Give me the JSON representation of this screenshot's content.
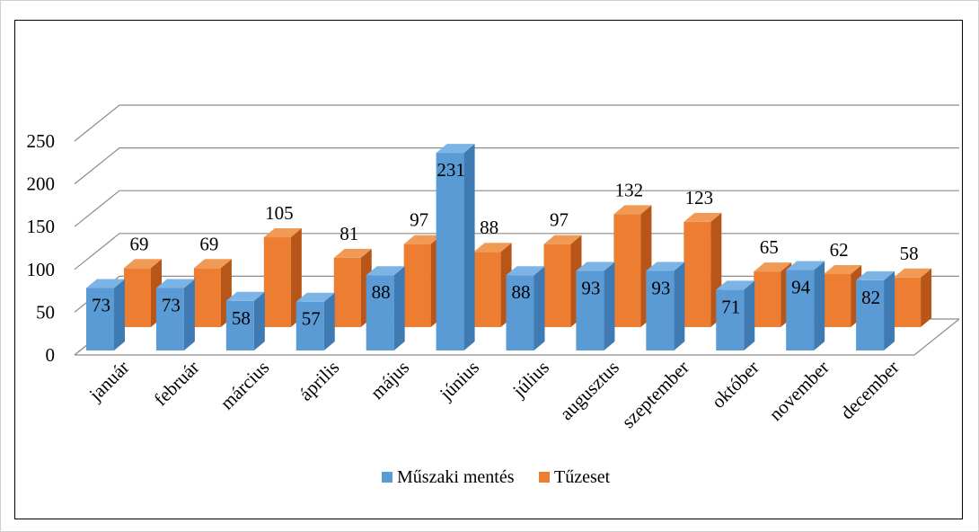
{
  "chart_data": {
    "type": "bar",
    "categories": [
      "január",
      "február",
      "március",
      "április",
      "május",
      "június",
      "július",
      "augusztus",
      "szeptember",
      "október",
      "november",
      "december"
    ],
    "series": [
      {
        "name": "Műszaki mentés",
        "values": [
          73,
          73,
          58,
          57,
          88,
          231,
          88,
          93,
          93,
          71,
          94,
          82
        ],
        "color": "#5B9BD5",
        "side_color": "#3F7AB2",
        "top_color": "#7DB4E6"
      },
      {
        "name": "Tűzeset",
        "values": [
          69,
          69,
          105,
          81,
          97,
          88,
          97,
          132,
          123,
          65,
          62,
          58
        ],
        "color": "#ED7D31",
        "side_color": "#B8561A",
        "top_color": "#F19A56"
      }
    ],
    "y_ticks": [
      "0",
      "50",
      "100",
      "150",
      "200",
      "250"
    ],
    "ylim": [
      0,
      250
    ],
    "grid": true,
    "legend_position": "bottom",
    "three_d": true
  }
}
